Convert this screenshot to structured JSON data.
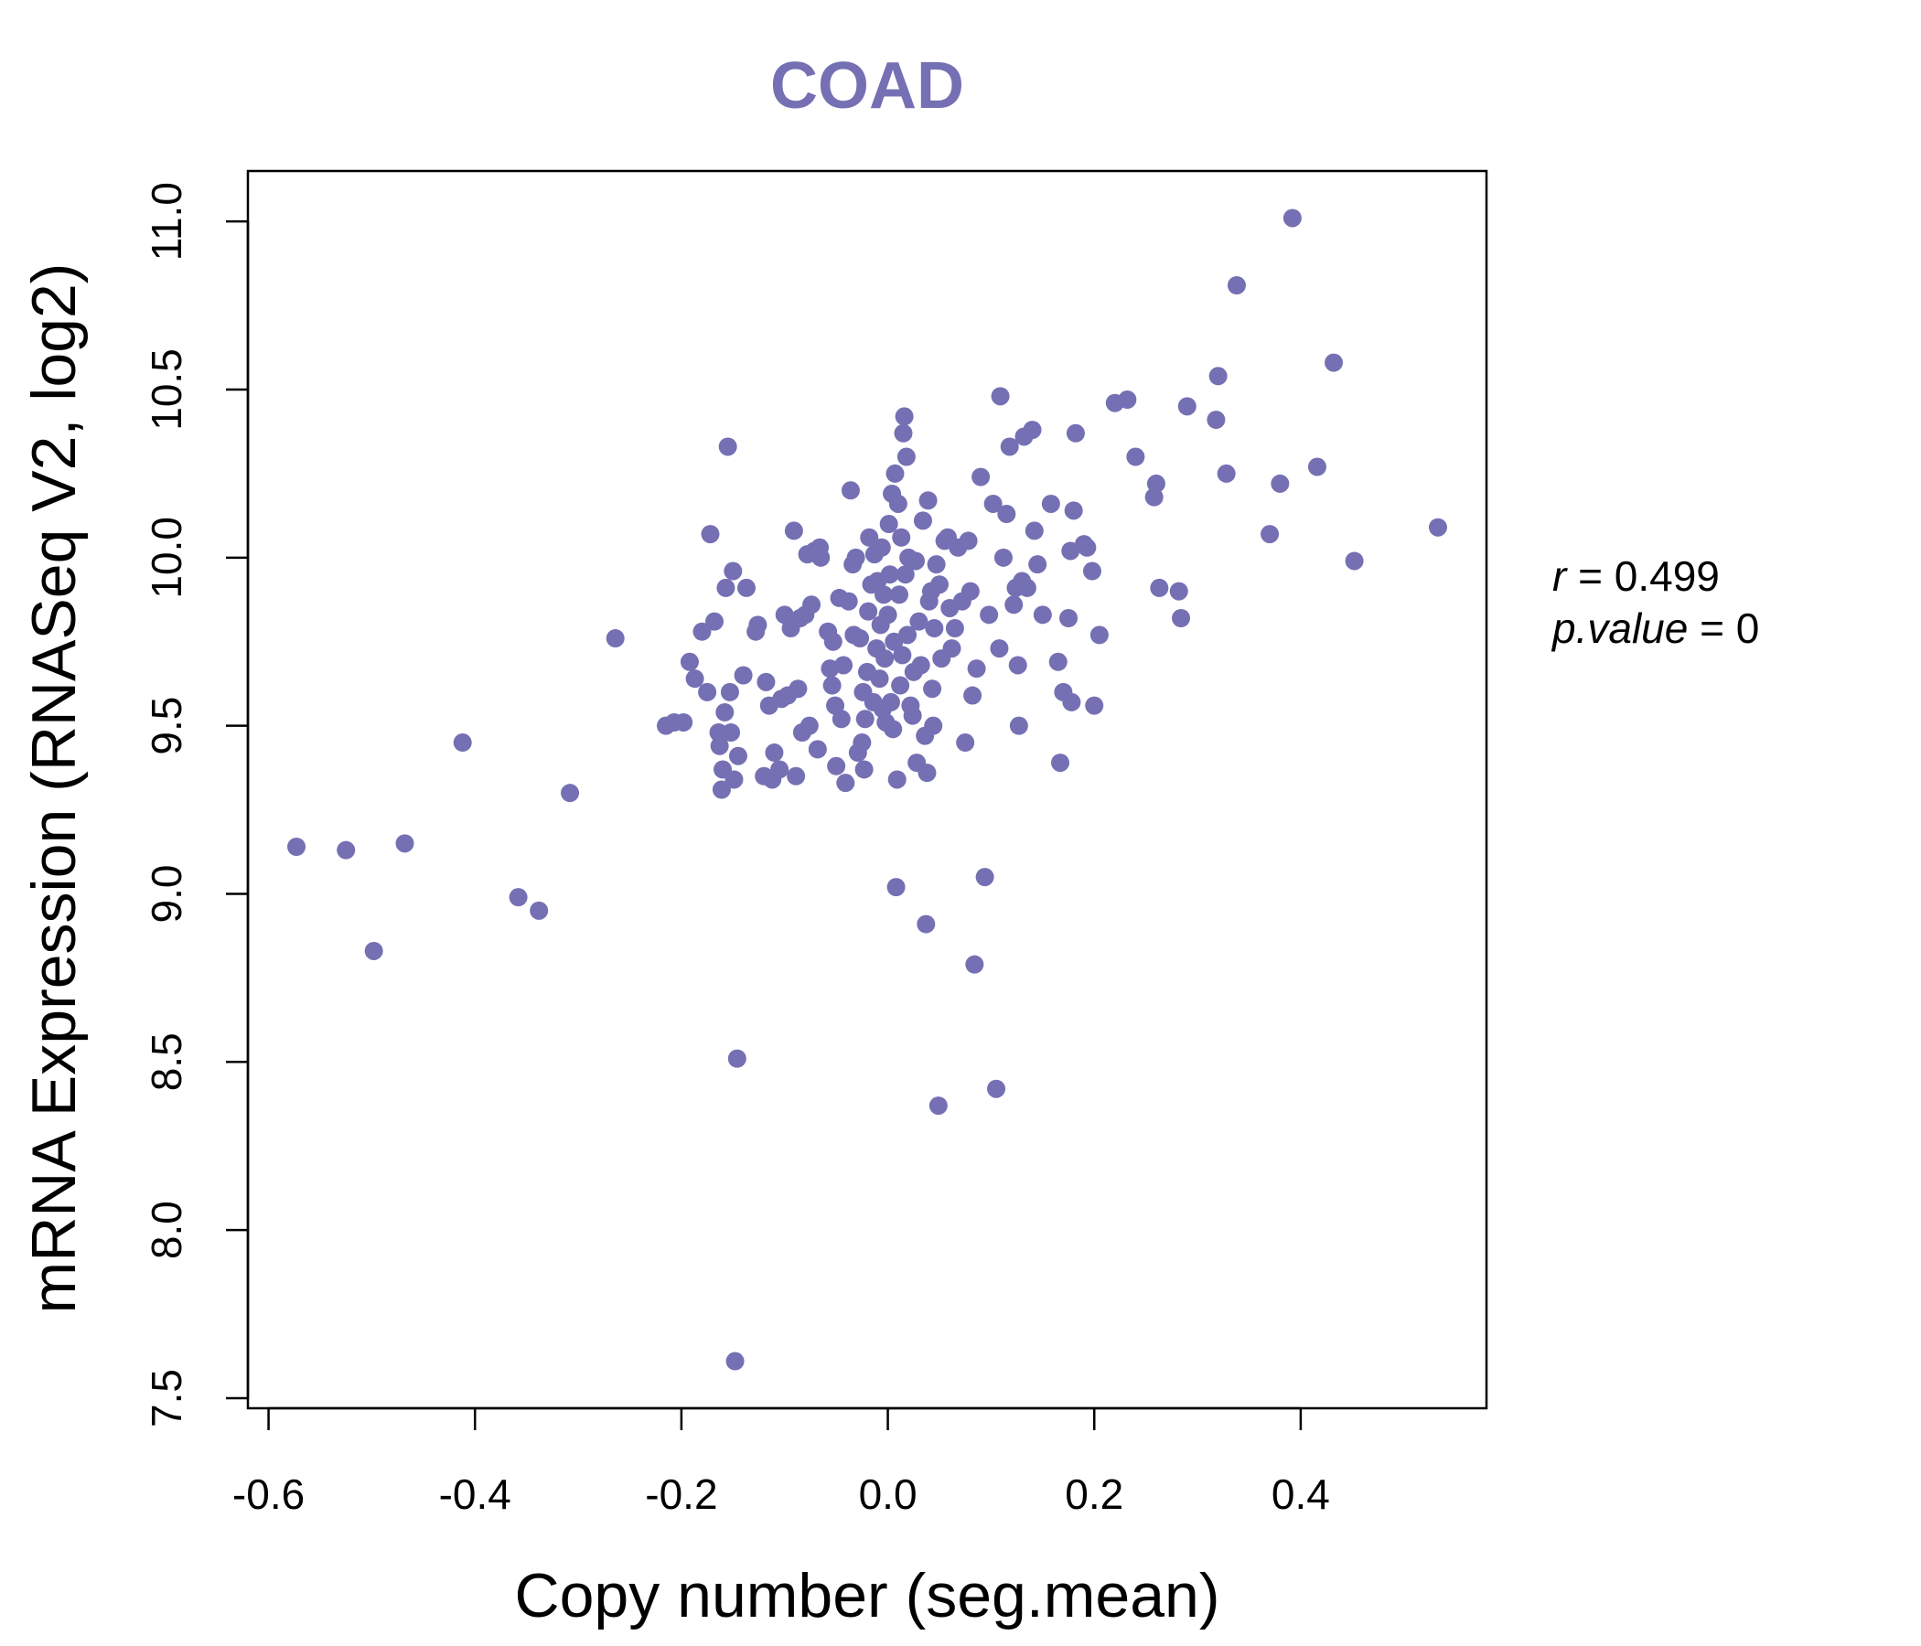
{
  "chart_data": {
    "type": "scatter",
    "title": "COAD",
    "xlabel": "Copy number (seg.mean)",
    "ylabel": "mRNA Expression (RNASeq V2, log2)",
    "xlim": [
      -0.62,
      0.58
    ],
    "ylim": [
      7.47,
      11.15
    ],
    "xticks": [
      -0.6,
      -0.4,
      -0.2,
      0.0,
      0.2,
      0.4
    ],
    "xtick_labels": [
      "-0.6",
      "-0.4",
      "-0.2",
      "0.0",
      "0.2",
      "0.4"
    ],
    "yticks": [
      7.5,
      8.0,
      8.5,
      9.0,
      9.5,
      10.0,
      10.5,
      11.0
    ],
    "ytick_labels": [
      "7.5",
      "8.0",
      "8.5",
      "9.0",
      "9.5",
      "10.0",
      "10.5",
      "11.0"
    ],
    "grid": false,
    "point_color": "#7570b3",
    "stats": {
      "r_label": "r",
      "r_value": "0.499",
      "p_label": "p.value",
      "p_value": "0"
    },
    "points": [
      [
        -0.573,
        9.14
      ],
      [
        -0.525,
        9.13
      ],
      [
        -0.498,
        8.83
      ],
      [
        -0.468,
        9.15
      ],
      [
        -0.412,
        9.45
      ],
      [
        -0.358,
        8.99
      ],
      [
        -0.338,
        8.95
      ],
      [
        -0.308,
        9.3
      ],
      [
        -0.264,
        9.76
      ],
      [
        -0.215,
        9.5
      ],
      [
        -0.207,
        9.51
      ],
      [
        -0.198,
        9.51
      ],
      [
        -0.192,
        9.69
      ],
      [
        -0.187,
        9.64
      ],
      [
        -0.18,
        9.78
      ],
      [
        -0.175,
        9.6
      ],
      [
        -0.172,
        10.07
      ],
      [
        -0.168,
        9.81
      ],
      [
        -0.164,
        9.48
      ],
      [
        -0.163,
        9.44
      ],
      [
        -0.161,
        9.31
      ],
      [
        -0.16,
        9.37
      ],
      [
        -0.158,
        9.54
      ],
      [
        -0.157,
        9.91
      ],
      [
        -0.155,
        10.33
      ],
      [
        -0.153,
        9.6
      ],
      [
        -0.152,
        9.48
      ],
      [
        -0.15,
        9.96
      ],
      [
        -0.149,
        9.34
      ],
      [
        -0.148,
        7.61
      ],
      [
        -0.146,
        8.51
      ],
      [
        -0.145,
        9.41
      ],
      [
        -0.14,
        9.65
      ],
      [
        -0.137,
        9.91
      ],
      [
        -0.128,
        9.78
      ],
      [
        -0.126,
        9.8
      ],
      [
        -0.12,
        9.35
      ],
      [
        -0.118,
        9.63
      ],
      [
        -0.115,
        9.56
      ],
      [
        -0.112,
        9.34
      ],
      [
        -0.11,
        9.42
      ],
      [
        -0.105,
        9.37
      ],
      [
        -0.103,
        9.58
      ],
      [
        -0.1,
        9.83
      ],
      [
        -0.097,
        9.59
      ],
      [
        -0.094,
        9.79
      ],
      [
        -0.091,
        10.08
      ],
      [
        -0.089,
        9.35
      ],
      [
        -0.087,
        9.61
      ],
      [
        -0.085,
        9.82
      ],
      [
        -0.083,
        9.48
      ],
      [
        -0.08,
        9.83
      ],
      [
        -0.078,
        10.01
      ],
      [
        -0.076,
        9.5
      ],
      [
        -0.074,
        9.86
      ],
      [
        -0.071,
        10.02
      ],
      [
        -0.068,
        9.43
      ],
      [
        -0.066,
        10.03
      ],
      [
        -0.065,
        10.0
      ],
      [
        -0.058,
        9.78
      ],
      [
        -0.056,
        9.67
      ],
      [
        -0.054,
        9.62
      ],
      [
        -0.053,
        9.75
      ],
      [
        -0.051,
        9.56
      ],
      [
        -0.05,
        9.38
      ],
      [
        -0.047,
        9.88
      ],
      [
        -0.045,
        9.52
      ],
      [
        -0.043,
        9.68
      ],
      [
        -0.041,
        9.33
      ],
      [
        -0.038,
        9.87
      ],
      [
        -0.036,
        10.2
      ],
      [
        -0.034,
        9.98
      ],
      [
        -0.033,
        9.77
      ],
      [
        -0.031,
        10.0
      ],
      [
        -0.029,
        9.42
      ],
      [
        -0.027,
        9.76
      ],
      [
        -0.025,
        9.45
      ],
      [
        -0.024,
        9.6
      ],
      [
        -0.023,
        9.37
      ],
      [
        -0.022,
        9.52
      ],
      [
        -0.02,
        9.66
      ],
      [
        -0.019,
        9.84
      ],
      [
        -0.018,
        10.06
      ],
      [
        -0.016,
        9.92
      ],
      [
        -0.014,
        9.57
      ],
      [
        -0.013,
        10.01
      ],
      [
        -0.011,
        9.73
      ],
      [
        -0.01,
        9.93
      ],
      [
        -0.008,
        9.64
      ],
      [
        -0.007,
        9.8
      ],
      [
        -0.006,
        10.03
      ],
      [
        -0.005,
        9.55
      ],
      [
        -0.004,
        9.89
      ],
      [
        -0.003,
        9.7
      ],
      [
        -0.002,
        9.51
      ],
      [
        0.0,
        9.83
      ],
      [
        0.001,
        10.1
      ],
      [
        0.002,
        9.95
      ],
      [
        0.003,
        9.57
      ],
      [
        0.004,
        10.19
      ],
      [
        0.005,
        9.49
      ],
      [
        0.006,
        9.75
      ],
      [
        0.007,
        10.25
      ],
      [
        0.008,
        9.02
      ],
      [
        0.009,
        9.34
      ],
      [
        0.01,
        10.16
      ],
      [
        0.011,
        9.89
      ],
      [
        0.012,
        9.62
      ],
      [
        0.013,
        10.06
      ],
      [
        0.014,
        9.71
      ],
      [
        0.015,
        10.37
      ],
      [
        0.016,
        10.42
      ],
      [
        0.017,
        9.95
      ],
      [
        0.018,
        10.3
      ],
      [
        0.019,
        9.77
      ],
      [
        0.02,
        10.0
      ],
      [
        0.022,
        9.56
      ],
      [
        0.024,
        9.53
      ],
      [
        0.025,
        9.66
      ],
      [
        0.027,
        9.99
      ],
      [
        0.028,
        9.39
      ],
      [
        0.03,
        9.81
      ],
      [
        0.032,
        9.68
      ],
      [
        0.034,
        10.11
      ],
      [
        0.036,
        9.47
      ],
      [
        0.037,
        8.91
      ],
      [
        0.038,
        9.36
      ],
      [
        0.039,
        10.17
      ],
      [
        0.04,
        9.87
      ],
      [
        0.042,
        9.9
      ],
      [
        0.043,
        9.61
      ],
      [
        0.044,
        9.5
      ],
      [
        0.045,
        9.79
      ],
      [
        0.047,
        9.98
      ],
      [
        0.049,
        8.37
      ],
      [
        0.05,
        9.92
      ],
      [
        0.052,
        9.7
      ],
      [
        0.055,
        10.05
      ],
      [
        0.058,
        10.06
      ],
      [
        0.06,
        9.85
      ],
      [
        0.062,
        9.73
      ],
      [
        0.065,
        9.79
      ],
      [
        0.068,
        10.03
      ],
      [
        0.072,
        9.87
      ],
      [
        0.075,
        9.45
      ],
      [
        0.078,
        10.05
      ],
      [
        0.08,
        9.9
      ],
      [
        0.082,
        9.59
      ],
      [
        0.084,
        8.79
      ],
      [
        0.086,
        9.67
      ],
      [
        0.09,
        10.24
      ],
      [
        0.094,
        9.05
      ],
      [
        0.098,
        9.83
      ],
      [
        0.102,
        10.16
      ],
      [
        0.105,
        8.42
      ],
      [
        0.108,
        9.73
      ],
      [
        0.109,
        10.48
      ],
      [
        0.112,
        10.0
      ],
      [
        0.115,
        10.13
      ],
      [
        0.118,
        10.33
      ],
      [
        0.122,
        9.86
      ],
      [
        0.124,
        9.91
      ],
      [
        0.126,
        9.68
      ],
      [
        0.127,
        9.5
      ],
      [
        0.13,
        9.93
      ],
      [
        0.132,
        10.36
      ],
      [
        0.135,
        9.91
      ],
      [
        0.14,
        10.38
      ],
      [
        0.142,
        10.08
      ],
      [
        0.145,
        9.98
      ],
      [
        0.15,
        9.83
      ],
      [
        0.158,
        10.16
      ],
      [
        0.165,
        9.69
      ],
      [
        0.167,
        9.39
      ],
      [
        0.17,
        9.6
      ],
      [
        0.175,
        9.82
      ],
      [
        0.177,
        10.02
      ],
      [
        0.178,
        9.57
      ],
      [
        0.18,
        10.14
      ],
      [
        0.182,
        10.37
      ],
      [
        0.19,
        10.04
      ],
      [
        0.193,
        10.03
      ],
      [
        0.198,
        9.96
      ],
      [
        0.2,
        9.56
      ],
      [
        0.205,
        9.77
      ],
      [
        0.22,
        10.46
      ],
      [
        0.232,
        10.47
      ],
      [
        0.24,
        10.3
      ],
      [
        0.258,
        10.18
      ],
      [
        0.26,
        10.22
      ],
      [
        0.263,
        9.91
      ],
      [
        0.282,
        9.9
      ],
      [
        0.284,
        9.82
      ],
      [
        0.29,
        10.45
      ],
      [
        0.318,
        10.41
      ],
      [
        0.32,
        10.54
      ],
      [
        0.328,
        10.25
      ],
      [
        0.338,
        10.81
      ],
      [
        0.37,
        10.07
      ],
      [
        0.38,
        10.22
      ],
      [
        0.392,
        11.01
      ],
      [
        0.416,
        10.27
      ],
      [
        0.432,
        10.58
      ],
      [
        0.452,
        9.99
      ],
      [
        0.533,
        10.09
      ]
    ]
  }
}
